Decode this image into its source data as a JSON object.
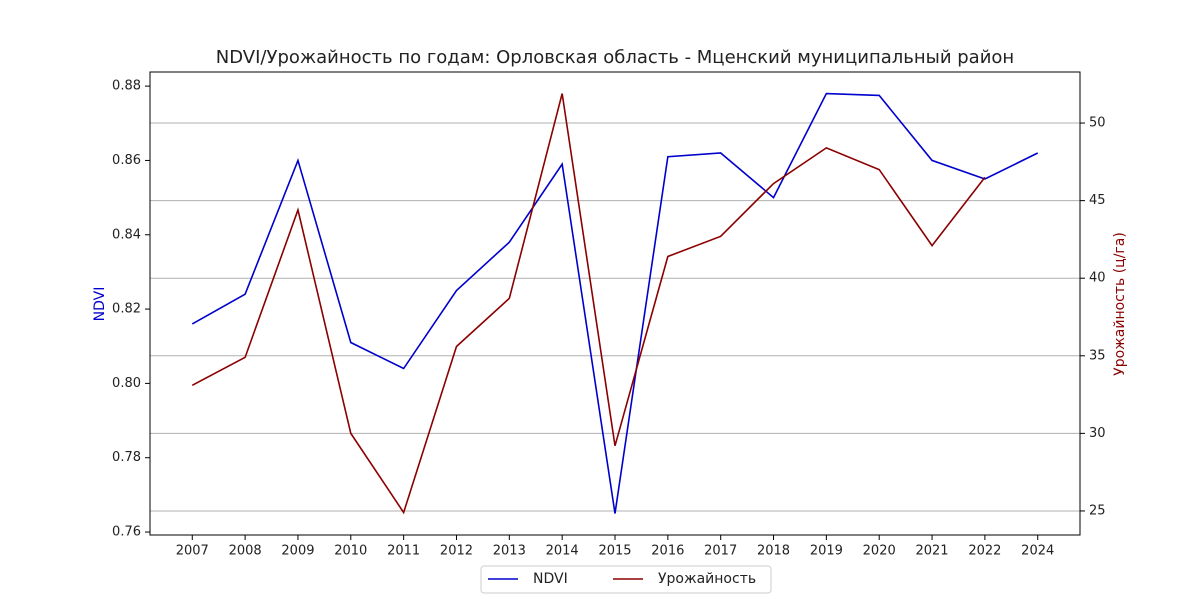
{
  "chart_data": {
    "type": "line",
    "title": "NDVI/Урожайность по годам: Орловская область - Мценский муниципальный район",
    "ylabel": "NDVI",
    "y2label": "Урожайность (ц/га)",
    "categories": [
      "2007",
      "2008",
      "2009",
      "2010",
      "2011",
      "2012",
      "2013",
      "2014",
      "2015",
      "2016",
      "2017",
      "2018",
      "2019",
      "2020",
      "2021",
      "2022",
      "2024"
    ],
    "series": [
      {
        "name": "NDVI",
        "color": "#0000cd",
        "values": [
          0.816,
          0.824,
          0.86,
          0.811,
          0.804,
          0.825,
          0.838,
          0.859,
          0.765,
          0.861,
          0.862,
          0.85,
          0.878,
          0.8775,
          0.86,
          0.855,
          0.862
        ]
      },
      {
        "name": "Урожайность",
        "color": "#8b0000",
        "axis": "y2",
        "values": [
          33.1,
          34.9,
          44.4,
          30.0,
          24.9,
          35.6,
          38.7,
          51.9,
          29.2,
          41.4,
          42.7,
          46.1,
          48.4,
          47.0,
          42.1,
          46.5,
          null
        ]
      }
    ],
    "ylim": [
      0.7592,
      0.8838
    ],
    "yticks": [
      0.76,
      0.78,
      {
        "value": 0.8,
        "label": "0.80"
      },
      0.82,
      0.84,
      0.86,
      0.88
    ],
    "y2lim": [
      23.45,
      53.29
    ],
    "y2ticks": [
      25,
      30,
      35,
      40,
      45,
      50
    ],
    "grid": "y2",
    "legend": "bottom"
  }
}
